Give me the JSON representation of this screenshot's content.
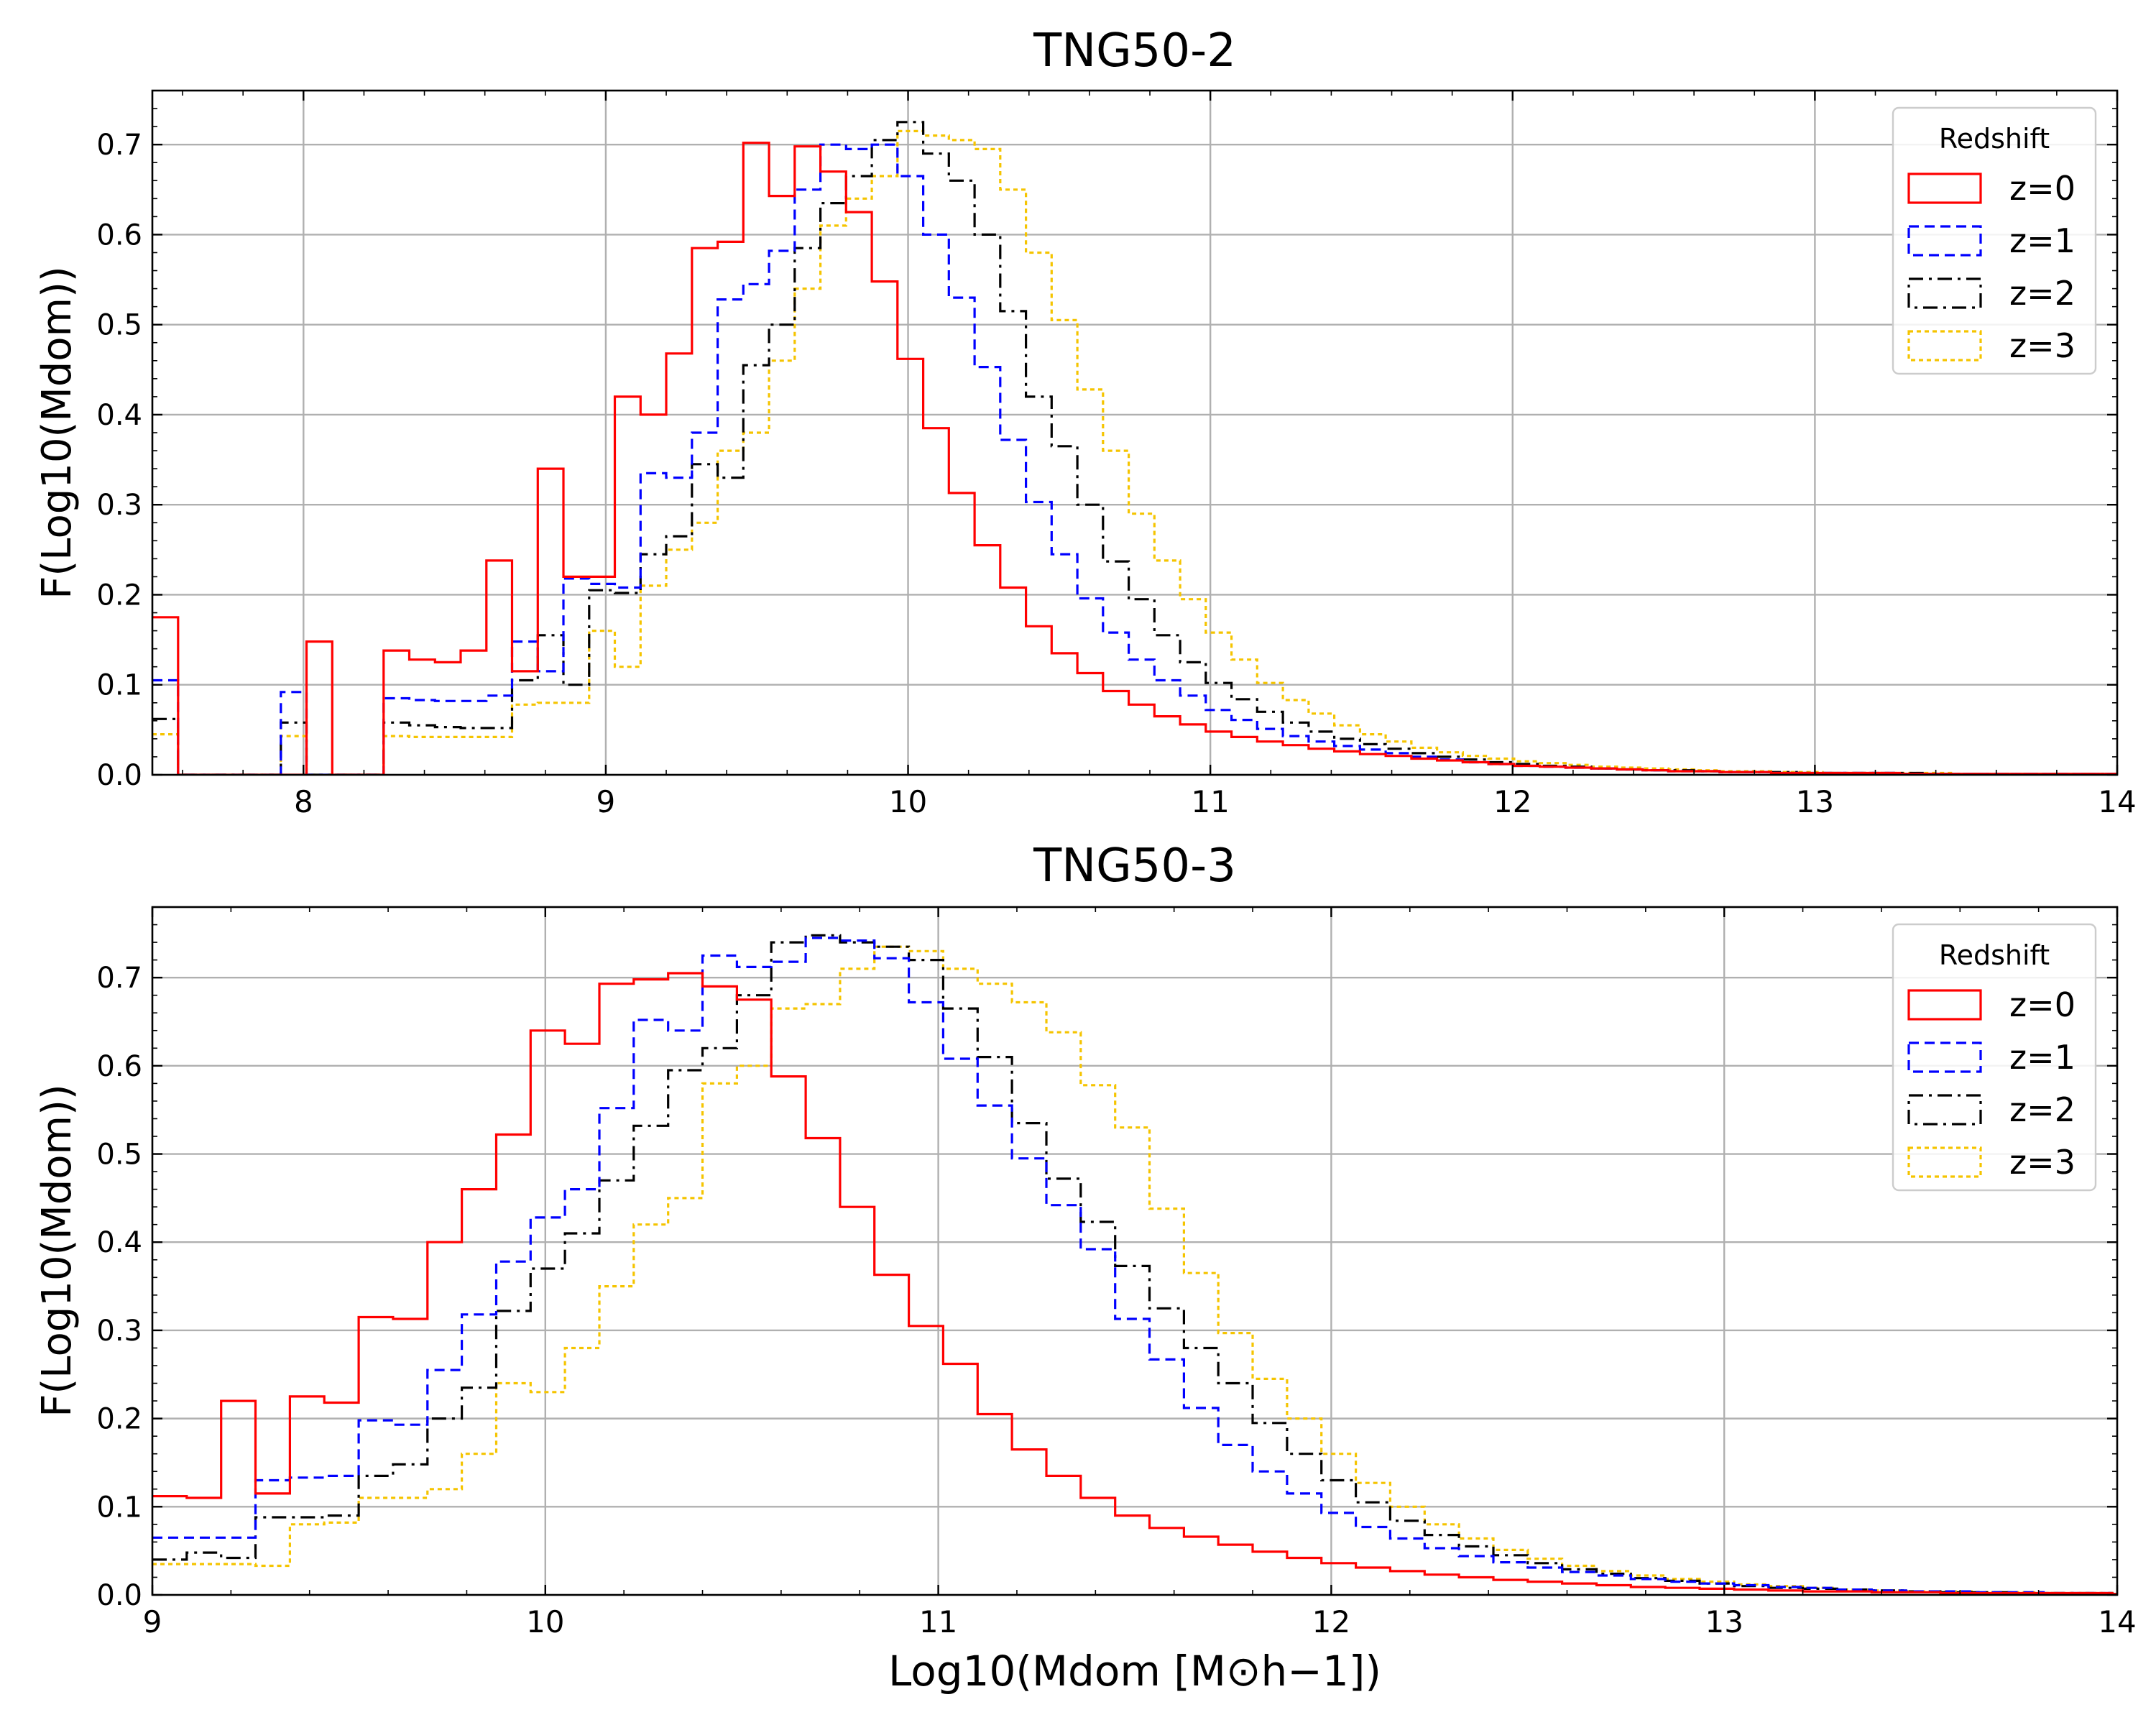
{
  "figure": {
    "xlabel": "Log10(Mdom [M⊙h−1])",
    "ylabel": "F(Log10(Mdom))"
  },
  "chart_data": [
    {
      "type": "histogram-step",
      "title": "TNG50-2",
      "ylabel": "F(Log10(Mdom))",
      "xlabel": "",
      "xlim": [
        7.5,
        14
      ],
      "ylim": [
        0,
        0.76
      ],
      "xticks": [
        8,
        9,
        10,
        11,
        12,
        13,
        14
      ],
      "yticks": [
        0.0,
        0.1,
        0.2,
        0.3,
        0.4,
        0.5,
        0.6,
        0.7
      ],
      "grid": true,
      "legend": {
        "title": "Redshift",
        "placement": "top-right"
      },
      "bin_start": 7.5,
      "bin_width": 0.085,
      "series": [
        {
          "name": "z=0",
          "color": "#ff0000",
          "dash": "solid",
          "values": [
            0.175,
            0,
            0,
            0,
            0,
            0,
            0.148,
            0,
            0,
            0.138,
            0.128,
            0.125,
            0.138,
            0.238,
            0.115,
            0.34,
            0.22,
            0.22,
            0.42,
            0.4,
            0.468,
            0.585,
            0.592,
            0.702,
            0.643,
            0.698,
            0.67,
            0.625,
            0.548,
            0.462,
            0.385,
            0.313,
            0.255,
            0.208,
            0.165,
            0.135,
            0.113,
            0.093,
            0.078,
            0.065,
            0.056,
            0.048,
            0.042,
            0.037,
            0.033,
            0.029,
            0.026,
            0.023,
            0.021,
            0.018,
            0.016,
            0.014,
            0.012,
            0.01,
            0.009,
            0.008,
            0.007,
            0.006,
            0.005,
            0.004,
            0.004,
            0.003,
            0.003,
            0.002,
            0.002,
            0.002,
            0.002,
            0.002,
            0.001,
            0.001,
            0.001,
            0.001,
            0.001,
            0.001,
            0.001,
            0.001,
            0.001
          ]
        },
        {
          "name": "z=1",
          "color": "#0000ff",
          "dash": "dashed",
          "values": [
            0.105,
            0,
            0,
            0,
            0,
            0.092,
            0,
            0,
            0,
            0.085,
            0.083,
            0.082,
            0.082,
            0.088,
            0.148,
            0.115,
            0.218,
            0.212,
            0.208,
            0.335,
            0.33,
            0.38,
            0.528,
            0.545,
            0.582,
            0.65,
            0.7,
            0.695,
            0.7,
            0.665,
            0.6,
            0.53,
            0.453,
            0.372,
            0.303,
            0.245,
            0.196,
            0.158,
            0.128,
            0.105,
            0.088,
            0.072,
            0.061,
            0.051,
            0.043,
            0.037,
            0.032,
            0.028,
            0.024,
            0.02,
            0.017,
            0.014,
            0.012,
            0.01,
            0.009,
            0.008,
            0.007,
            0.006,
            0.005,
            0.004,
            0.004,
            0.003,
            0.003,
            0.002,
            0.002,
            0.002,
            0.002,
            0.002,
            0.001,
            0.001,
            0.001,
            0.001,
            0.001,
            0.001,
            0.001,
            0.001,
            0.001
          ]
        },
        {
          "name": "z=2",
          "color": "#000000",
          "dash": "dashdot",
          "values": [
            0.062,
            0,
            0,
            0,
            0,
            0.058,
            0,
            0,
            0,
            0.058,
            0.055,
            0.053,
            0.052,
            0.052,
            0.105,
            0.155,
            0.1,
            0.205,
            0.202,
            0.245,
            0.265,
            0.345,
            0.33,
            0.455,
            0.5,
            0.585,
            0.635,
            0.665,
            0.705,
            0.725,
            0.69,
            0.66,
            0.6,
            0.515,
            0.42,
            0.365,
            0.3,
            0.237,
            0.195,
            0.155,
            0.125,
            0.102,
            0.084,
            0.07,
            0.058,
            0.048,
            0.04,
            0.034,
            0.029,
            0.024,
            0.02,
            0.017,
            0.014,
            0.012,
            0.01,
            0.009,
            0.007,
            0.006,
            0.005,
            0.005,
            0.004,
            0.003,
            0.003,
            0.003,
            0.002,
            0.002,
            0.002,
            0.002,
            0.002,
            0.001,
            0.001,
            0.001,
            0.001,
            0.001,
            0.001,
            0.001,
            0.001
          ]
        },
        {
          "name": "z=3",
          "color": "#f5c400",
          "dash": "dotted",
          "values": [
            0.045,
            0,
            0,
            0,
            0,
            0.043,
            0,
            0,
            0,
            0.043,
            0.042,
            0.042,
            0.042,
            0.042,
            0.078,
            0.08,
            0.08,
            0.16,
            0.12,
            0.21,
            0.25,
            0.28,
            0.36,
            0.38,
            0.46,
            0.54,
            0.61,
            0.64,
            0.665,
            0.715,
            0.71,
            0.705,
            0.695,
            0.65,
            0.58,
            0.505,
            0.428,
            0.36,
            0.29,
            0.238,
            0.195,
            0.158,
            0.128,
            0.102,
            0.083,
            0.068,
            0.055,
            0.045,
            0.037,
            0.03,
            0.025,
            0.021,
            0.018,
            0.015,
            0.013,
            0.011,
            0.009,
            0.008,
            0.007,
            0.006,
            0.005,
            0.004,
            0.004,
            0.003,
            0.003,
            0.002,
            0.002,
            0.002,
            0.002,
            0.002,
            0.001,
            0.001,
            0.001,
            0.001,
            0.001,
            0.001,
            0.001
          ]
        }
      ]
    },
    {
      "type": "histogram-step",
      "title": "TNG50-3",
      "ylabel": "F(Log10(Mdom))",
      "xlabel": "Log10(Mdom [M⊙h−1])",
      "xlim": [
        9,
        14
      ],
      "ylim": [
        0,
        0.78
      ],
      "xticks": [
        9,
        10,
        11,
        12,
        13,
        14
      ],
      "yticks": [
        0.0,
        0.1,
        0.2,
        0.3,
        0.4,
        0.5,
        0.6,
        0.7
      ],
      "grid": true,
      "legend": {
        "title": "Redshift",
        "placement": "top-right"
      },
      "bin_start": 9.0,
      "bin_width": 0.0875,
      "series": [
        {
          "name": "z=0",
          "color": "#ff0000",
          "dash": "solid",
          "values": [
            0.112,
            0.11,
            0.22,
            0.115,
            0.225,
            0.218,
            0.315,
            0.313,
            0.4,
            0.46,
            0.522,
            0.64,
            0.625,
            0.693,
            0.698,
            0.705,
            0.69,
            0.675,
            0.588,
            0.518,
            0.44,
            0.363,
            0.305,
            0.262,
            0.205,
            0.165,
            0.135,
            0.11,
            0.09,
            0.076,
            0.066,
            0.057,
            0.049,
            0.042,
            0.036,
            0.031,
            0.027,
            0.023,
            0.02,
            0.017,
            0.015,
            0.013,
            0.011,
            0.009,
            0.008,
            0.007,
            0.006,
            0.005,
            0.004,
            0.004,
            0.003,
            0.003,
            0.002,
            0.002,
            0.002,
            0.002,
            0.002,
            0.001
          ]
        },
        {
          "name": "z=1",
          "color": "#0000ff",
          "dash": "dashed",
          "values": [
            0.065,
            0.065,
            0.065,
            0.13,
            0.133,
            0.135,
            0.198,
            0.193,
            0.255,
            0.318,
            0.378,
            0.428,
            0.46,
            0.552,
            0.652,
            0.64,
            0.725,
            0.712,
            0.718,
            0.745,
            0.742,
            0.722,
            0.672,
            0.608,
            0.555,
            0.495,
            0.442,
            0.392,
            0.313,
            0.267,
            0.212,
            0.17,
            0.14,
            0.115,
            0.093,
            0.077,
            0.064,
            0.053,
            0.044,
            0.037,
            0.031,
            0.026,
            0.022,
            0.018,
            0.015,
            0.013,
            0.011,
            0.009,
            0.008,
            0.006,
            0.005,
            0.004,
            0.004,
            0.003,
            0.003,
            0.002,
            0.002,
            0.002
          ]
        },
        {
          "name": "z=2",
          "color": "#000000",
          "dash": "dashdot",
          "values": [
            0.04,
            0.048,
            0.042,
            0.088,
            0.088,
            0.09,
            0.135,
            0.148,
            0.2,
            0.235,
            0.322,
            0.37,
            0.41,
            0.47,
            0.532,
            0.595,
            0.62,
            0.68,
            0.74,
            0.748,
            0.74,
            0.735,
            0.72,
            0.665,
            0.61,
            0.535,
            0.472,
            0.423,
            0.373,
            0.325,
            0.28,
            0.24,
            0.195,
            0.16,
            0.13,
            0.105,
            0.084,
            0.068,
            0.055,
            0.045,
            0.036,
            0.029,
            0.024,
            0.019,
            0.016,
            0.013,
            0.01,
            0.008,
            0.007,
            0.006,
            0.005,
            0.004,
            0.003,
            0.003,
            0.002,
            0.002,
            0.002,
            0.001
          ]
        },
        {
          "name": "z=3",
          "color": "#f5c400",
          "dash": "dotted",
          "values": [
            0.035,
            0.035,
            0.035,
            0.033,
            0.08,
            0.082,
            0.11,
            0.11,
            0.12,
            0.16,
            0.24,
            0.23,
            0.28,
            0.35,
            0.42,
            0.45,
            0.58,
            0.6,
            0.665,
            0.67,
            0.71,
            0.735,
            0.73,
            0.71,
            0.693,
            0.672,
            0.638,
            0.578,
            0.53,
            0.438,
            0.365,
            0.297,
            0.245,
            0.2,
            0.16,
            0.127,
            0.1,
            0.08,
            0.064,
            0.051,
            0.041,
            0.033,
            0.027,
            0.022,
            0.018,
            0.015,
            0.012,
            0.01,
            0.008,
            0.006,
            0.005,
            0.004,
            0.004,
            0.003,
            0.003,
            0.002,
            0.002,
            0.002
          ]
        }
      ]
    }
  ]
}
